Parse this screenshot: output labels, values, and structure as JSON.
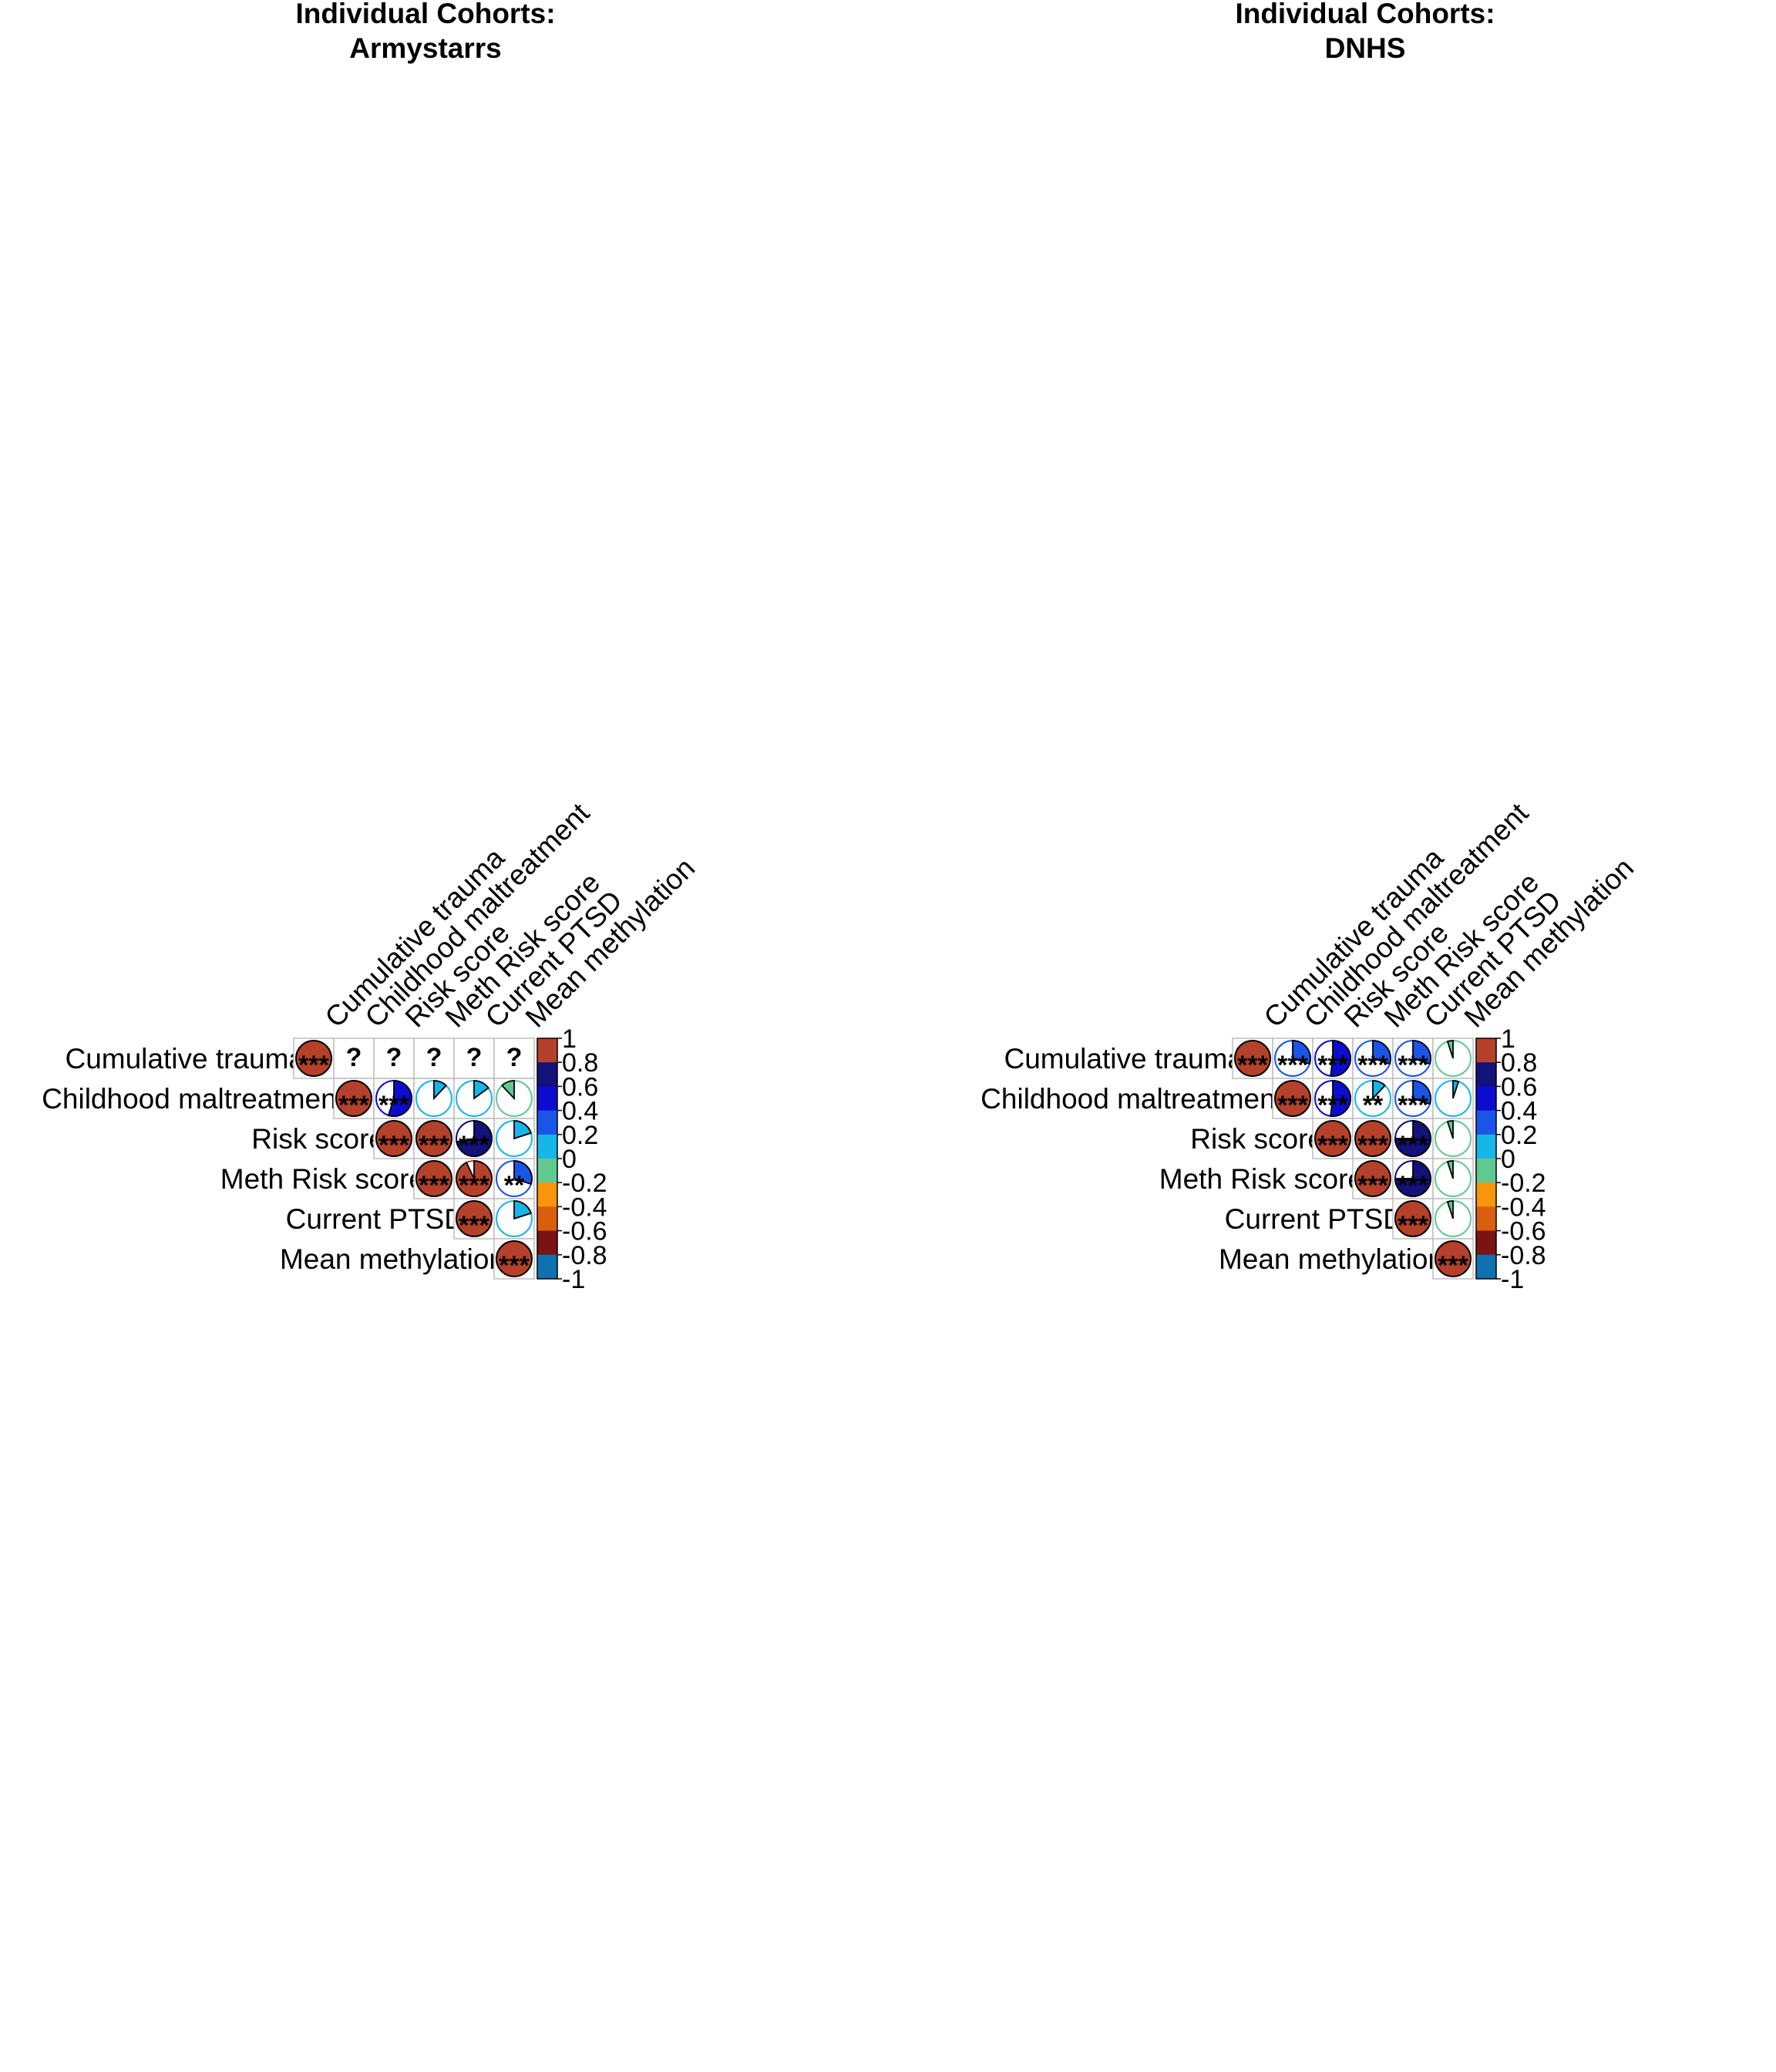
{
  "panels": [
    {
      "title_line1": "Individual Cohorts:",
      "title_line2": "Armystarrs"
    },
    {
      "title_line1": "Individual Cohorts:",
      "title_line2": "DNHS"
    }
  ],
  "chart_data": [
    {
      "type": "heatmap",
      "title": "Individual Cohorts:\nArmystarrs",
      "variables": [
        "Cumulative trauma",
        "Childhood maltreatment",
        "Risk score",
        "Meth Risk score",
        "Current PTSD",
        "Mean methylation"
      ],
      "layout": "upper-triangle pie correlogram",
      "correlations": [
        [
          1,
          null,
          null,
          null,
          null,
          null
        ],
        [
          null,
          1,
          0.55,
          0.12,
          0.15,
          -0.12
        ],
        [
          null,
          0.55,
          1,
          1,
          0.72,
          0.2
        ],
        [
          null,
          0.12,
          1,
          1,
          0.93,
          0.3
        ],
        [
          null,
          0.15,
          0.72,
          0.93,
          1,
          0.2
        ],
        [
          null,
          -0.12,
          0.2,
          0.3,
          0.2,
          1
        ]
      ],
      "significance": [
        [
          "***",
          "?",
          "?",
          "?",
          "?",
          "?"
        ],
        [
          "?",
          "***",
          "***",
          "",
          "",
          ""
        ],
        [
          "?",
          "***",
          "***",
          "***",
          "***",
          ""
        ],
        [
          "?",
          "",
          "***",
          "***",
          "***",
          "**"
        ],
        [
          "?",
          "",
          "***",
          "***",
          "***",
          ""
        ],
        [
          "?",
          "",
          "",
          "**",
          "",
          "***"
        ]
      ],
      "colorbar_ticks": [
        "1",
        "0.8",
        "0.6",
        "0.4",
        "0.2",
        "0",
        "-0.2",
        "-0.4",
        "-0.6",
        "-0.8",
        "-1"
      ],
      "colorbar_colors": [
        "#b5412b",
        "#13117a",
        "#0c0cd1",
        "#1a55e8",
        "#17b6e8",
        "#61c98f",
        "#f9950c",
        "#d95f0e",
        "#7a1313",
        "#0f71b0"
      ],
      "ylim": [
        -1,
        1
      ]
    },
    {
      "type": "heatmap",
      "title": "Individual Cohorts:\nDNHS",
      "variables": [
        "Cumulative trauma",
        "Childhood maltreatment",
        "Risk score",
        "Meth Risk score",
        "Current PTSD",
        "Mean methylation"
      ],
      "layout": "upper-triangle pie correlogram",
      "correlations": [
        [
          1,
          0.3,
          0.52,
          0.3,
          0.3,
          -0.05
        ],
        [
          0.3,
          1,
          0.52,
          0.12,
          0.3,
          0.05
        ],
        [
          0.52,
          0.52,
          1,
          1,
          0.75,
          -0.05
        ],
        [
          0.3,
          0.12,
          1,
          1,
          0.75,
          -0.05
        ],
        [
          0.3,
          0.3,
          0.75,
          0.75,
          1,
          -0.05
        ],
        [
          -0.05,
          0.05,
          -0.05,
          -0.05,
          -0.05,
          1
        ]
      ],
      "significance": [
        [
          "***",
          "***",
          "***",
          "***",
          "***",
          ""
        ],
        [
          "***",
          "***",
          "***",
          "**",
          "***",
          ""
        ],
        [
          "***",
          "***",
          "***",
          "***",
          "***",
          ""
        ],
        [
          "***",
          "**",
          "***",
          "***",
          "***",
          ""
        ],
        [
          "***",
          "***",
          "***",
          "***",
          "***",
          ""
        ],
        [
          "",
          "",
          "",
          "",
          "",
          "***"
        ]
      ],
      "colorbar_ticks": [
        "1",
        "0.8",
        "0.6",
        "0.4",
        "0.2",
        "0",
        "-0.2",
        "-0.4",
        "-0.6",
        "-0.8",
        "-1"
      ],
      "colorbar_colors": [
        "#b5412b",
        "#13117a",
        "#0c0cd1",
        "#1a55e8",
        "#17b6e8",
        "#61c98f",
        "#f9950c",
        "#d95f0e",
        "#7a1313",
        "#0f71b0"
      ],
      "ylim": [
        -1,
        1
      ]
    }
  ]
}
